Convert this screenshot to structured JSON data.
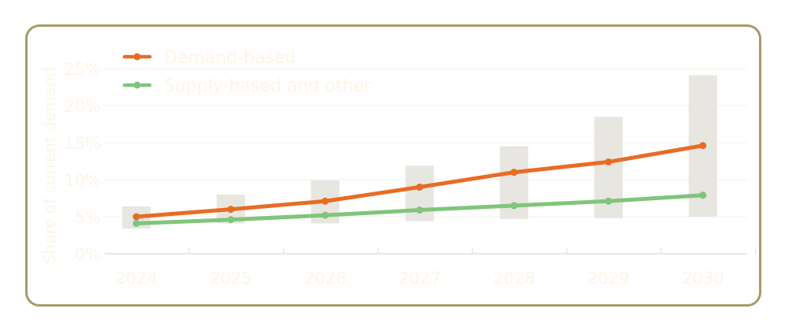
{
  "chart_data": {
    "type": "line",
    "title": "",
    "xlabel": "",
    "ylabel": "Share of current demand",
    "categories": [
      "2024",
      "2025",
      "2026",
      "2027",
      "2028",
      "2029",
      "2030"
    ],
    "ylim": [
      0,
      25
    ],
    "yticks": [
      "0%",
      "5%",
      "10%",
      "15%",
      "20%",
      "25%"
    ],
    "ytick_values": [
      0,
      5,
      10,
      15,
      20,
      25
    ],
    "grid": true,
    "legend_position": "top-left",
    "series": [
      {
        "name": "Demand-based",
        "color": "#e86c24",
        "values": [
          5.0,
          6.0,
          7.1,
          9.0,
          11.0,
          12.4,
          14.6
        ]
      },
      {
        "name": "Supply-based and other",
        "color": "#80c57a",
        "values": [
          4.1,
          4.6,
          5.2,
          5.9,
          6.5,
          7.1,
          7.9
        ]
      }
    ],
    "range_bars": {
      "color": "#e7e6e1",
      "low": [
        3.4,
        4.1,
        4.1,
        4.4,
        4.7,
        4.8,
        5.0
      ],
      "high": [
        6.4,
        8.0,
        9.9,
        11.9,
        14.5,
        18.5,
        24.1
      ]
    },
    "text_color": "#fcf5e8",
    "frame_color": "#a89a68"
  }
}
